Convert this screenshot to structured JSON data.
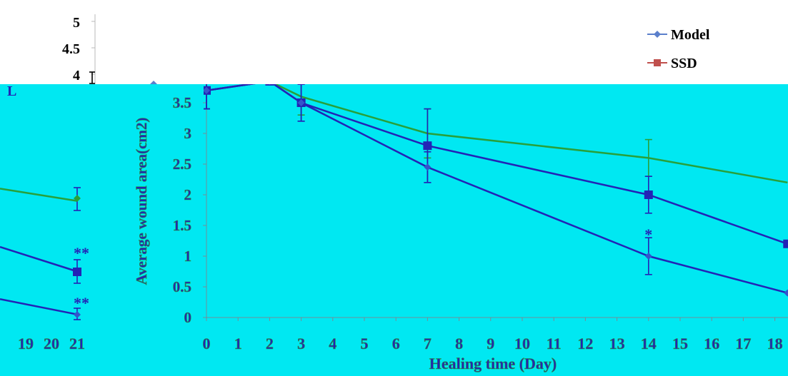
{
  "chart_data": [
    {
      "type": "line",
      "title": "",
      "xlabel": "",
      "ylabel": "",
      "xlim": [
        0,
        5
      ],
      "ylim": [
        0,
        5
      ],
      "y_ticks": [
        "5",
        "4.5",
        "4"
      ],
      "legend": {
        "placement": "top-right",
        "entries": [
          "Model",
          "SSD"
        ]
      },
      "colors": {
        "Model": "#5b7fcb",
        "SSD": "#c0504d",
        "axis": "#000000"
      },
      "series": [
        {
          "name": "Model",
          "x": [
            0,
            2
          ],
          "y": [
            4.0,
            4.0
          ]
        },
        {
          "name": "SSD",
          "x": [
            0,
            2
          ],
          "y": [
            4.0,
            4.0
          ]
        }
      ]
    },
    {
      "type": "line",
      "title": "",
      "xlabel": "",
      "ylabel": "",
      "x_ticks": [
        "19",
        "20",
        "21"
      ],
      "colors": {
        "background": "#00e8f2",
        "lines": "#2323b6",
        "green_line": "#28a03a",
        "text": "#2323b6"
      },
      "series": [
        {
          "x": [
            18,
            21
          ],
          "y": [
            2.1,
            1.9
          ]
        },
        {
          "x": [
            18,
            21
          ],
          "y": [
            1.15,
            0.75
          ]
        },
        {
          "x": [
            18,
            21
          ],
          "y": [
            0.3,
            0.05
          ]
        }
      ],
      "annotations": [
        "**",
        "**"
      ],
      "fragment_label": "L"
    },
    {
      "type": "line",
      "title": "",
      "xlabel": "Healing time (Day)",
      "ylabel": "Average wound area(cm2)",
      "xlim": [
        0,
        18
      ],
      "ylim": [
        0,
        3.9
      ],
      "x_ticks": [
        "0",
        "1",
        "2",
        "3",
        "4",
        "5",
        "6",
        "7",
        "8",
        "9",
        "10",
        "11",
        "12",
        "13",
        "14",
        "15",
        "16",
        "17",
        "18"
      ],
      "y_ticks": [
        "0",
        "0.5",
        "1",
        "1.5",
        "2",
        "2.5",
        "3",
        "3.5"
      ],
      "colors": {
        "background": "#00e8f2",
        "blue": "#2323b6",
        "green": "#28a03a",
        "text": "#2323b6",
        "axis_text_fill": "#28a03a"
      },
      "series": [
        {
          "x": [
            0,
            2,
            3,
            7,
            14,
            18.4
          ],
          "y": [
            3.7,
            3.85,
            3.6,
            3.0,
            2.6,
            2.2
          ],
          "color": "green",
          "err": [
            0.3,
            0,
            0.3,
            0.4,
            0.3,
            0
          ]
        },
        {
          "x": [
            0,
            2,
            3,
            7,
            14,
            18.4
          ],
          "y": [
            3.7,
            3.85,
            3.5,
            2.8,
            2.0,
            1.2
          ],
          "color": "blue",
          "marker": "square",
          "err": [
            0.3,
            0,
            0.3,
            0.6,
            0.3,
            0
          ]
        },
        {
          "x": [
            0,
            2,
            3,
            7,
            14,
            18.4
          ],
          "y": [
            3.7,
            3.85,
            3.5,
            2.45,
            1.0,
            0.4
          ],
          "color": "blue",
          "marker": "diamond",
          "err": [
            0.3,
            0,
            0.3,
            0.25,
            0.3,
            0
          ]
        }
      ],
      "annotations": [
        {
          "x": 14,
          "y": 1.3,
          "text": "*"
        }
      ]
    }
  ]
}
